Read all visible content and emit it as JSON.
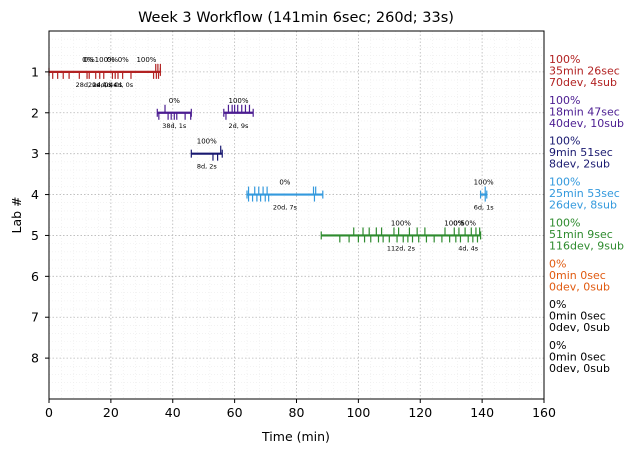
{
  "chart_data": {
    "type": "timeline",
    "title": "Week 3 Workflow (141min 6sec; 260d; 33s)",
    "xlabel": "Time (min)",
    "ylabel": "Lab #",
    "xlim": [
      0,
      160
    ],
    "ylim": [
      9,
      0
    ],
    "xticks": [
      0,
      20,
      40,
      60,
      80,
      100,
      120,
      140,
      160
    ],
    "yticks": [
      1,
      2,
      3,
      4,
      5,
      6,
      7,
      8
    ],
    "grid": true,
    "series": [
      {
        "lab": 1,
        "color": "#b22222",
        "segments": [
          {
            "start": 0,
            "end": 36,
            "pct": "100%",
            "label": "14d, 4s"
          }
        ],
        "ticks_up": [
          34.5,
          35.2,
          36.0
        ],
        "ticks_down": [
          1.2,
          2.8,
          4.6,
          6.5,
          9.8,
          12.3,
          13.0,
          15.1,
          16.4,
          17.7,
          20.5,
          21.4,
          22.3,
          23.8,
          26.5,
          33.8,
          34.7,
          35.4
        ],
        "markers": [
          {
            "x": 12.5,
            "pct": "0%",
            "label": "28d, 0s"
          },
          {
            "x": 13.0,
            "pct": "0%",
            "label": ""
          },
          {
            "x": 16.5,
            "pct": "",
            "label": "22d, 0s"
          },
          {
            "x": 20.5,
            "pct": "0%",
            "label": "4d, 0s"
          },
          {
            "x": 24.0,
            "pct": "0%",
            "label": "4d, 0s"
          },
          {
            "x": 31.5,
            "pct": "100%",
            "label": ""
          }
        ],
        "summary": {
          "percent": "100%",
          "time": "35min 26sec",
          "counts": "70dev, 4sub"
        }
      },
      {
        "lab": 2,
        "color": "#4b1c91",
        "segments": [
          {
            "start": 35,
            "end": 46,
            "pct": "0%",
            "label": "38d, 1s"
          },
          {
            "start": 56.5,
            "end": 66,
            "pct": "100%",
            "label": "2d, 9s"
          }
        ],
        "ticks_up": [
          37.5,
          58.0,
          59.2,
          60.0,
          61.0,
          62.3,
          63.5,
          64.8
        ],
        "ticks_down": [
          35.5,
          38.5,
          39.5,
          40.5,
          41.3,
          44.0,
          45.8,
          57.2
        ],
        "summary": {
          "percent": "100%",
          "time": "18min 47sec",
          "counts": "40dev, 10sub"
        }
      },
      {
        "lab": 3,
        "color": "#191970",
        "segments": [
          {
            "start": 46,
            "end": 56,
            "pct": "100%",
            "label": "8d, 2s"
          }
        ],
        "ticks_up": [
          55.5
        ],
        "ticks_down": [
          53.0,
          54.5
        ],
        "summary": {
          "percent": "100%",
          "time": "9min 51sec",
          "counts": "8dev, 2sub"
        }
      },
      {
        "lab": 4,
        "color": "#3399dd",
        "segments": [
          {
            "start": 64,
            "end": 88.5,
            "pct": "0%",
            "label": "20d, 7s"
          },
          {
            "start": 139.5,
            "end": 141.5,
            "pct": "100%",
            "label": "6d, 1s"
          }
        ],
        "ticks_up": [
          64.5,
          66.5,
          67.8,
          69.2,
          70.5,
          85.5,
          86.2,
          141.0
        ],
        "ticks_down": [
          64.5,
          65.8,
          67.2,
          68.4,
          69.9,
          71.0,
          85.8,
          141.0
        ],
        "summary": {
          "percent": "100%",
          "time": "25min 53sec",
          "counts": "26dev, 8sub"
        }
      },
      {
        "lab": 5,
        "color": "#2e8b2e",
        "segments": [
          {
            "start": 88,
            "end": 139.5,
            "pct": "100%",
            "label": "112d, 2s"
          }
        ],
        "ticks_up": [
          98.5,
          101.5,
          103.5,
          105.8,
          107.5,
          111.5,
          113.0,
          116.5,
          119.0,
          121.5,
          128.0,
          131.0,
          132.5,
          134.5,
          136.5,
          138.0,
          139.2
        ],
        "ticks_down": [
          94.0,
          97.0,
          100.0,
          102.0,
          104.0,
          106.5,
          108.0,
          110.0,
          112.5,
          114.5,
          116.0,
          117.5,
          119.5,
          122.0,
          124.5,
          127.0,
          129.5,
          131.5,
          133.0,
          135.5,
          137.0,
          138.5
        ],
        "markers": [
          {
            "x": 131.0,
            "pct": "100%",
            "label": ""
          },
          {
            "x": 132.5,
            "pct": "0%",
            "label": ""
          },
          {
            "x": 135.5,
            "pct": "50%",
            "label": "4d, 4s"
          }
        ],
        "summary": {
          "percent": "100%",
          "time": "51min 9sec",
          "counts": "116dev, 9sub"
        }
      },
      {
        "lab": 6,
        "color": "#e05a10",
        "segments": [],
        "ticks_up": [],
        "ticks_down": [],
        "summary": {
          "percent": "0%",
          "time": "0min 0sec",
          "counts": "0dev, 0sub"
        }
      },
      {
        "lab": 7,
        "color": "#000000",
        "segments": [],
        "ticks_up": [],
        "ticks_down": [],
        "summary": {
          "percent": "0%",
          "time": "0min 0sec",
          "counts": "0dev, 0sub"
        }
      },
      {
        "lab": 8,
        "color": "#000000",
        "segments": [],
        "ticks_up": [],
        "ticks_down": [],
        "summary": {
          "percent": "0%",
          "time": "0min 0sec",
          "counts": "0dev, 0sub"
        }
      }
    ]
  }
}
